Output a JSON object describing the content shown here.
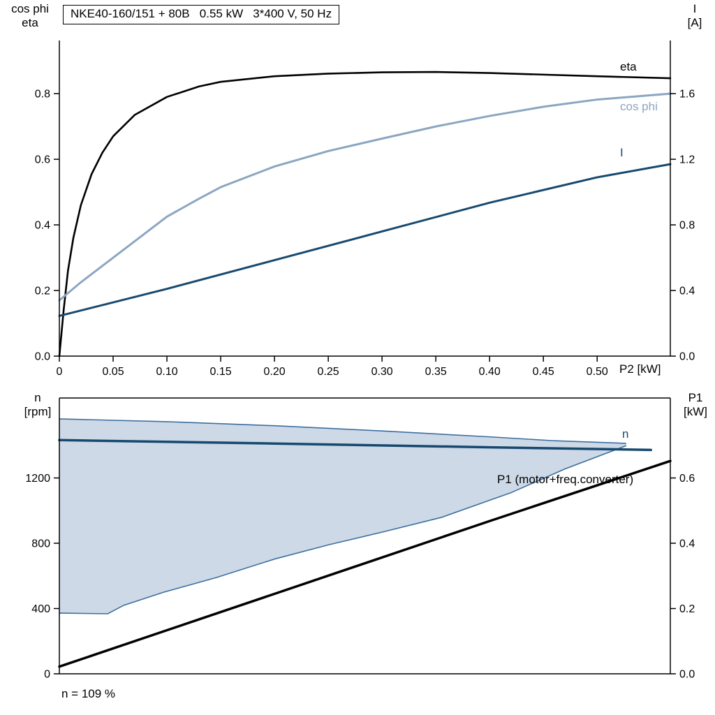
{
  "title": "NKE40-160/151 + 80B   0.55 kW   3*400 V, 50 Hz",
  "footnote": "n = 109 %",
  "colors": {
    "black": "#000000",
    "light_blue": "#8ba6c1",
    "dark_blue": "#17496f",
    "envelope_fill": "#cdd9e7",
    "envelope_edge": "#3c6e9f"
  },
  "chart_data": [
    {
      "type": "line",
      "title": "NKE40-160/151 + 80B   0.55 kW   3*400 V, 50 Hz",
      "x_axis": {
        "label": "P2 [kW]",
        "range": [
          0,
          0.568
        ],
        "ticks": [
          0,
          0.05,
          0.1,
          0.15,
          0.2,
          0.25,
          0.3,
          0.35,
          0.4,
          0.45,
          0.5
        ],
        "tick_labels": [
          "0",
          "0.05",
          "0.10",
          "0.15",
          "0.20",
          "0.25",
          "0.30",
          "0.35",
          "0.40",
          "0.45",
          "0.50"
        ]
      },
      "left_axis": {
        "label_lines": [
          "cos phi",
          "eta"
        ],
        "range": [
          0,
          0.962
        ],
        "ticks": [
          0,
          0.2,
          0.4,
          0.6,
          0.8
        ],
        "tick_labels": [
          "0.0",
          "0.2",
          "0.4",
          "0.6",
          "0.8"
        ]
      },
      "right_axis": {
        "label_lines": [
          "I",
          "[A]"
        ],
        "range": [
          0,
          1.924
        ],
        "ticks": [
          0,
          0.4,
          0.8,
          1.2,
          1.6
        ],
        "tick_labels": [
          "0.0",
          "0.4",
          "0.8",
          "1.2",
          "1.6"
        ]
      },
      "series": [
        {
          "name": "eta",
          "axis": "left",
          "color": "black",
          "width": 2.6,
          "points": [
            [
              0,
              0
            ],
            [
              0.004,
              0.14
            ],
            [
              0.008,
              0.26
            ],
            [
              0.013,
              0.36
            ],
            [
              0.02,
              0.46
            ],
            [
              0.03,
              0.555
            ],
            [
              0.04,
              0.62
            ],
            [
              0.05,
              0.67
            ],
            [
              0.07,
              0.735
            ],
            [
              0.1,
              0.79
            ],
            [
              0.13,
              0.822
            ],
            [
              0.15,
              0.836
            ],
            [
              0.2,
              0.853
            ],
            [
              0.25,
              0.861
            ],
            [
              0.3,
              0.865
            ],
            [
              0.35,
              0.866
            ],
            [
              0.4,
              0.863
            ],
            [
              0.45,
              0.858
            ],
            [
              0.5,
              0.853
            ],
            [
              0.568,
              0.847
            ]
          ]
        },
        {
          "name": "cos phi",
          "axis": "left",
          "color": "light_blue",
          "width": 3,
          "points": [
            [
              0,
              0.17
            ],
            [
              0.02,
              0.225
            ],
            [
              0.05,
              0.3
            ],
            [
              0.08,
              0.375
            ],
            [
              0.1,
              0.425
            ],
            [
              0.13,
              0.48
            ],
            [
              0.15,
              0.515
            ],
            [
              0.2,
              0.578
            ],
            [
              0.25,
              0.625
            ],
            [
              0.3,
              0.663
            ],
            [
              0.35,
              0.7
            ],
            [
              0.4,
              0.732
            ],
            [
              0.45,
              0.76
            ],
            [
              0.5,
              0.782
            ],
            [
              0.568,
              0.8
            ]
          ]
        },
        {
          "name": "I",
          "axis": "right",
          "color": "dark_blue",
          "width": 3,
          "points": [
            [
              0,
              0.245
            ],
            [
              0.1,
              0.41
            ],
            [
              0.2,
              0.585
            ],
            [
              0.3,
              0.76
            ],
            [
              0.4,
              0.935
            ],
            [
              0.5,
              1.09
            ],
            [
              0.568,
              1.17
            ]
          ]
        }
      ]
    },
    {
      "type": "line",
      "x_axis": {
        "label": "",
        "range": [
          0,
          0.568
        ],
        "ticks": [],
        "tick_labels": []
      },
      "left_axis": {
        "label_lines": [
          "n",
          "[rpm]"
        ],
        "range": [
          0,
          1690
        ],
        "ticks": [
          0,
          400,
          800,
          1200
        ],
        "tick_labels": [
          "0",
          "400",
          "800",
          "1200"
        ]
      },
      "right_axis": {
        "label_lines": [
          "P1",
          "[kW]"
        ],
        "range": [
          0,
          0.845
        ],
        "ticks": [
          0,
          0.2,
          0.4,
          0.6
        ],
        "tick_labels": [
          "0.0",
          "0.2",
          "0.4",
          "0.6"
        ]
      },
      "envelope": {
        "fill": "envelope_fill",
        "edge": "envelope_edge",
        "upper": [
          [
            0,
            1562
          ],
          [
            0.1,
            1545
          ],
          [
            0.2,
            1520
          ],
          [
            0.3,
            1488
          ],
          [
            0.4,
            1452
          ],
          [
            0.46,
            1428
          ],
          [
            0.527,
            1412
          ]
        ],
        "lower": [
          [
            0,
            372
          ],
          [
            0.045,
            368
          ],
          [
            0.06,
            420
          ],
          [
            0.097,
            500
          ],
          [
            0.146,
            590
          ],
          [
            0.2,
            703
          ],
          [
            0.25,
            790
          ],
          [
            0.3,
            868
          ],
          [
            0.355,
            958
          ],
          [
            0.42,
            1110
          ],
          [
            0.47,
            1255
          ],
          [
            0.527,
            1398
          ]
        ]
      },
      "series": [
        {
          "name": "n",
          "axis": "left",
          "color": "dark_blue",
          "width": 3.5,
          "points": [
            [
              0,
              1432
            ],
            [
              0.2,
              1411
            ],
            [
              0.4,
              1388
            ],
            [
              0.55,
              1372
            ]
          ]
        },
        {
          "name": "P1 (motor+freq.converter)",
          "axis": "right",
          "color": "black",
          "width": 3.5,
          "points": [
            [
              0,
              0.022
            ],
            [
              0.2,
              0.245
            ],
            [
              0.4,
              0.468
            ],
            [
              0.568,
              0.652
            ]
          ]
        }
      ]
    }
  ]
}
